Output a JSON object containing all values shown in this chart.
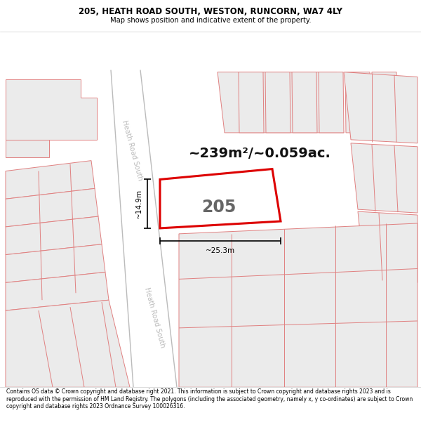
{
  "title_line1": "205, HEATH ROAD SOUTH, WESTON, RUNCORN, WA7 4LY",
  "title_line2": "Map shows position and indicative extent of the property.",
  "area_text": "~239m²/~0.059ac.",
  "label_205": "205",
  "dim_width": "~25.3m",
  "dim_height": "~14.9m",
  "footer_text": "Contains OS data © Crown copyright and database right 2021. This information is subject to Crown copyright and database rights 2023 and is reproduced with the permission of HM Land Registry. The polygons (including the associated geometry, namely x, y co-ordinates) are subject to Crown copyright and database rights 2023 Ordnance Survey 100026316.",
  "map_bg": "#ffffff",
  "building_fill": "#ebebeb",
  "building_edge": "#e08080",
  "road_fill": "#ffffff",
  "road_edge": "#bbbbbb",
  "highlight_color": "#dd0000",
  "text_color": "#000000",
  "road_label_color": "#bbbbbb",
  "title_bg": "#ffffff",
  "footer_bg": "#ffffff",
  "inner_building_fill": "#d8d8d8"
}
